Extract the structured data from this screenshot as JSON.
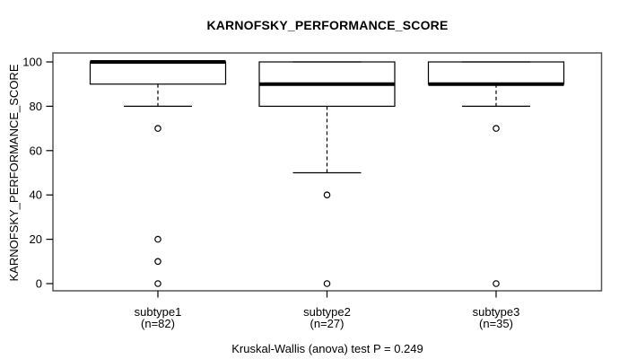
{
  "chart_data": {
    "type": "boxplot",
    "title": "KARNOFSKY_PERFORMANCE_SCORE",
    "xlabel": "",
    "ylabel": "KARNOFSKY_PERFORMANCE_SCORE",
    "caption": "Kruskal-Wallis (anova) test P = 0.249",
    "stats": {
      "test": "Kruskal-Wallis (anova)",
      "p_value": 0.249
    },
    "ylim": [
      0,
      100
    ],
    "yticks": [
      0,
      20,
      40,
      60,
      80,
      100
    ],
    "grid": false,
    "legend": null,
    "groups": [
      {
        "label": "subtype1",
        "sublabel": "(n=82)",
        "n": 82,
        "q1": 90,
        "median": 100,
        "q3": 100,
        "whisker_low": 80,
        "whisker_high": 100,
        "outliers": [
          70,
          20,
          10,
          0
        ]
      },
      {
        "label": "subtype2",
        "sublabel": "(n=27)",
        "n": 27,
        "q1": 80,
        "median": 90,
        "q3": 100,
        "whisker_low": 50,
        "whisker_high": 100,
        "outliers": [
          40,
          0
        ]
      },
      {
        "label": "subtype3",
        "sublabel": "(n=35)",
        "n": 35,
        "q1": 90,
        "median": 90,
        "q3": 100,
        "whisker_low": 80,
        "whisker_high": 100,
        "outliers": [
          70,
          0
        ]
      }
    ],
    "colors": {
      "box_stroke": "#000000",
      "box_fill": "#ffffff",
      "median": "#000000",
      "whisker": "#000000",
      "outlier_stroke": "#000000",
      "plot_border": "#555555",
      "text": "#000000",
      "background": "#ffffff"
    }
  }
}
